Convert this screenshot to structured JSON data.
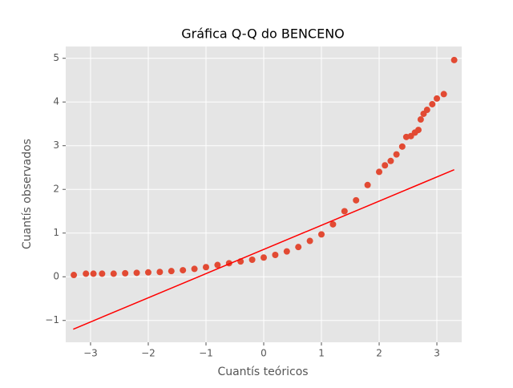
{
  "chart_data": {
    "type": "scatter",
    "title": "Gráfica Q-Q do BENCENO",
    "xlabel": "Cuantís teóricos",
    "ylabel": "Cuantís observados",
    "xlim": [
      -3.43,
      3.43
    ],
    "ylim": [
      -1.5,
      5.27
    ],
    "xticks": [
      {
        "value": -3,
        "label": "−3"
      },
      {
        "value": -2,
        "label": "−2"
      },
      {
        "value": -1,
        "label": "−1"
      },
      0,
      1,
      2,
      3
    ],
    "yticks": [
      {
        "value": -1,
        "label": "−1"
      },
      0,
      1,
      2,
      3,
      4,
      5
    ],
    "grid": true,
    "background": "#e5e5e5",
    "series": [
      {
        "type": "scatter",
        "color": "#e24a33",
        "x": [
          -3.29,
          -3.08,
          -2.95,
          -2.8,
          -2.6,
          -2.4,
          -2.2,
          -2.0,
          -1.8,
          -1.6,
          -1.4,
          -1.2,
          -1.0,
          -0.8,
          -0.6,
          -0.4,
          -0.2,
          0.0,
          0.2,
          0.4,
          0.6,
          0.8,
          1.0,
          1.2,
          1.4,
          1.6,
          1.8,
          2.0,
          2.1,
          2.2,
          2.3,
          2.4,
          2.47,
          2.55,
          2.62,
          2.68,
          2.72,
          2.77,
          2.83,
          2.92,
          3.0,
          3.12,
          3.3
        ],
        "values": [
          0.04,
          0.07,
          0.07,
          0.07,
          0.07,
          0.08,
          0.09,
          0.1,
          0.11,
          0.13,
          0.15,
          0.18,
          0.22,
          0.27,
          0.31,
          0.35,
          0.39,
          0.44,
          0.5,
          0.58,
          0.68,
          0.82,
          0.97,
          1.2,
          1.5,
          1.75,
          2.1,
          2.4,
          2.55,
          2.65,
          2.8,
          2.98,
          3.2,
          3.22,
          3.3,
          3.36,
          3.6,
          3.73,
          3.82,
          3.95,
          4.08,
          4.18,
          4.96
        ]
      },
      {
        "type": "line",
        "color": "#ff0000",
        "x": [
          -3.3,
          3.3
        ],
        "values": [
          -1.2,
          2.45
        ]
      }
    ]
  }
}
